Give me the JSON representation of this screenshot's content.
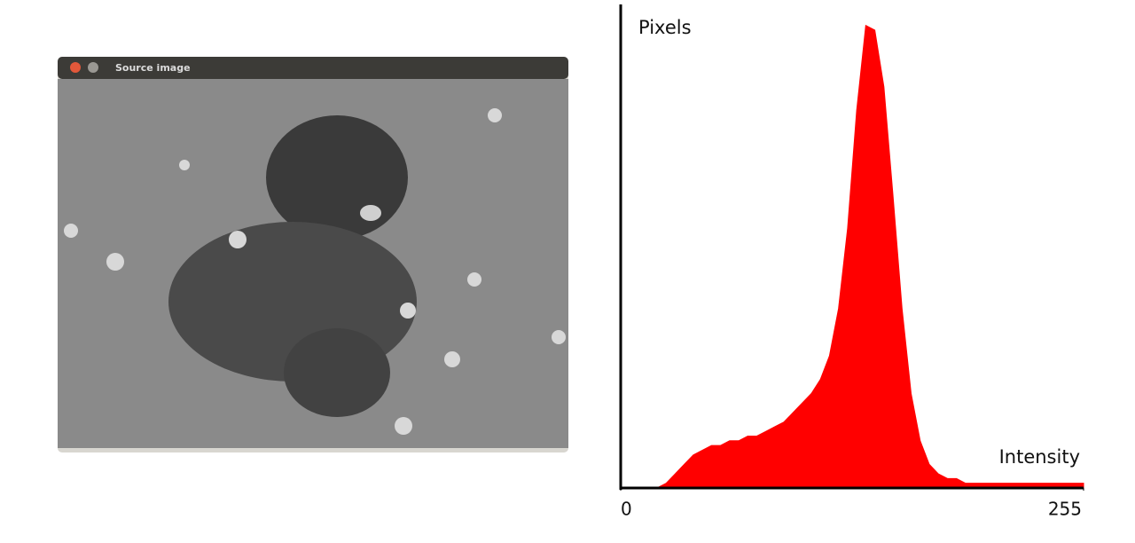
{
  "window": {
    "title": "Source image"
  },
  "chart_data": {
    "type": "area",
    "x_label": "Intensity",
    "y_label": "Pixels",
    "color": "#ff0000",
    "x": [
      0,
      5,
      10,
      15,
      20,
      25,
      30,
      35,
      40,
      45,
      50,
      55,
      60,
      65,
      70,
      75,
      80,
      85,
      90,
      95,
      100,
      105,
      110,
      115,
      120,
      125,
      130,
      135,
      140,
      145,
      150,
      155,
      160,
      165,
      170,
      175,
      180,
      185,
      190,
      195,
      200,
      205,
      210,
      215,
      220,
      225,
      230,
      235,
      240,
      245,
      250,
      255
    ],
    "values": [
      0,
      0,
      0,
      0,
      0,
      1,
      3,
      5,
      7,
      8,
      9,
      9,
      10,
      10,
      11,
      11,
      12,
      13,
      14,
      16,
      18,
      20,
      23,
      28,
      38,
      55,
      80,
      98,
      97,
      85,
      62,
      38,
      20,
      10,
      5,
      3,
      2,
      2,
      1,
      1,
      1,
      1,
      1,
      1,
      1,
      1,
      1,
      1,
      1,
      1,
      1,
      1
    ],
    "xlim": [
      0,
      255
    ],
    "xticks": [
      0,
      255
    ],
    "ylim": [
      0,
      100
    ]
  }
}
